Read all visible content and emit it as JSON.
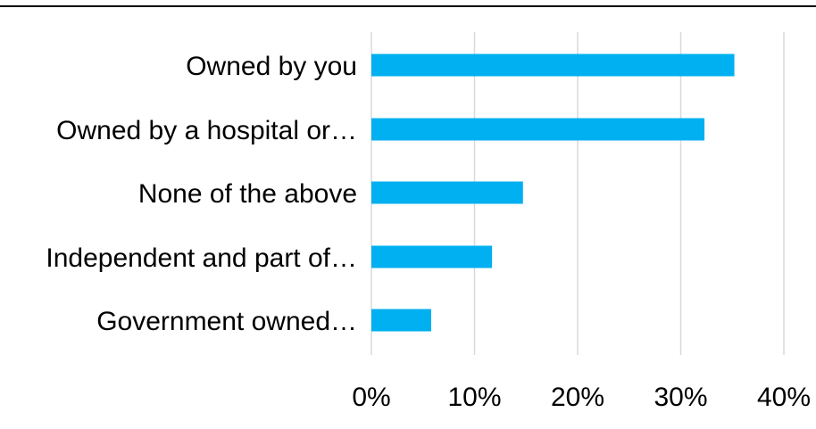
{
  "chart_data": {
    "type": "bar",
    "orientation": "horizontal",
    "categories": [
      "Owned by you",
      "Owned by a hospital or…",
      "None of the above",
      "Independent and part of…",
      "Government owned…"
    ],
    "values": [
      0.352,
      0.323,
      0.147,
      0.117,
      0.058
    ],
    "xlim": [
      0,
      0.4
    ],
    "xticks": [
      0,
      0.1,
      0.2,
      0.3,
      0.4
    ],
    "xtick_labels": [
      "0%",
      "10%",
      "20%",
      "30%",
      "40%"
    ],
    "bar_color": "#00b0f0",
    "gridline_color": "#d9d9d9",
    "grid": true,
    "legend": "none"
  }
}
